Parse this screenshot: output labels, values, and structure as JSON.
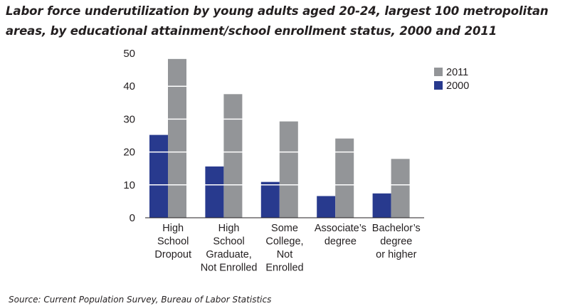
{
  "title": "Labor force underutilization by young adults aged 20-24, largest 100 metropolitan areas, by educational attainment/school enrollment status, 2000 and 2011",
  "source": "Source: Current Population Survey, Bureau of Labor Statistics",
  "colors": {
    "2000": "#283a8e",
    "2011": "#939598",
    "axis": "#231f20"
  },
  "chart_data": {
    "type": "bar",
    "categories": [
      [
        "High",
        "School",
        "Dropout"
      ],
      [
        "High",
        "School",
        "Graduate,",
        "Not Enrolled"
      ],
      [
        "Some",
        "College,",
        "Not",
        "Enrolled"
      ],
      [
        "Associate’s",
        "degree"
      ],
      [
        "Bachelor’s",
        "degree",
        "or higher"
      ]
    ],
    "series": [
      {
        "name": "2000",
        "values": [
          25.2,
          15.6,
          10.9,
          6.6,
          7.4
        ]
      },
      {
        "name": "2011",
        "values": [
          48.3,
          37.6,
          29.3,
          24.1,
          17.9
        ]
      }
    ],
    "ylim": [
      0,
      50
    ],
    "yticks": [
      0,
      10,
      20,
      30,
      40,
      50
    ],
    "grid": "white lines inside bars",
    "legend": "right",
    "legend_order": [
      "2011",
      "2000"
    ]
  }
}
